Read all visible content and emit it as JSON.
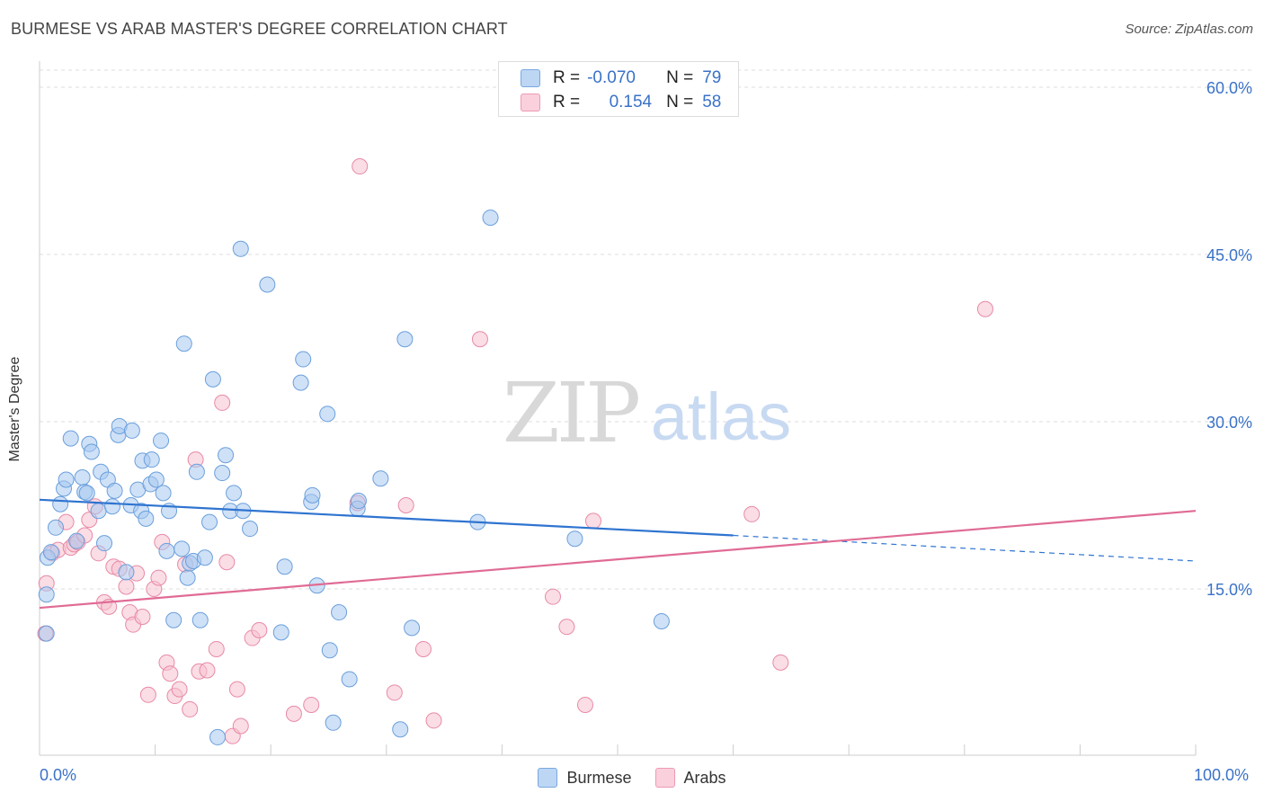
{
  "header": {
    "title": "BURMESE VS ARAB MASTER'S DEGREE CORRELATION CHART",
    "source": "Source: ZipAtlas.com"
  },
  "watermark": {
    "zip": "ZIP",
    "atlas": "atlas"
  },
  "legend": {
    "rows": [
      {
        "r_label": "R =",
        "r_value": "-0.070",
        "n_label": "N =",
        "n_value": "79",
        "color": "#a8c8f0"
      },
      {
        "r_label": "R =",
        "r_value": "0.154",
        "n_label": "N =",
        "n_value": "58",
        "color": "#f4b8c8"
      }
    ]
  },
  "bottom_legend": {
    "burmese": "Burmese",
    "arabs": "Arabs"
  },
  "colors": {
    "burmese_fill": "#a8c8f0",
    "burmese_stroke": "#6a9fdc",
    "burmese_line": "#2f74d0",
    "arabs_fill": "#f6c1cf",
    "arabs_stroke": "#e88aa6",
    "arabs_line": "#e06b95",
    "axis_label": "#3a72c8",
    "grid": "#dddddd"
  },
  "chart_data": {
    "type": "scatter",
    "title": "BURMESE VS ARAB MASTER'S DEGREE CORRELATION CHART",
    "xlabel": "",
    "ylabel": "Master's Degree",
    "xlim": [
      0,
      100
    ],
    "ylim": [
      0,
      62
    ],
    "x_tick_labels": [
      "0.0%",
      "100.0%"
    ],
    "y_ticks": [
      15,
      30,
      45,
      60
    ],
    "y_tick_labels": [
      "15.0%",
      "30.0%",
      "45.0%",
      "60.0%"
    ],
    "grid": true,
    "legend_position": "top-center",
    "series": [
      {
        "name": "Burmese",
        "R": -0.07,
        "N": 79,
        "trend": {
          "x0": 0,
          "y0": 23.0,
          "x1": 60,
          "y1": 19.8,
          "dashed_to": 100,
          "dashed_y": 17.5
        },
        "points": [
          [
            0.6,
            14.5
          ],
          [
            0.6,
            11.0
          ],
          [
            0.7,
            17.8
          ],
          [
            1.0,
            18.3
          ],
          [
            1.4,
            20.5
          ],
          [
            1.8,
            22.6
          ],
          [
            2.1,
            24.0
          ],
          [
            2.3,
            24.8
          ],
          [
            2.7,
            28.5
          ],
          [
            3.2,
            19.3
          ],
          [
            3.7,
            25.0
          ],
          [
            3.9,
            23.7
          ],
          [
            4.1,
            23.6
          ],
          [
            4.3,
            28.0
          ],
          [
            4.5,
            27.3
          ],
          [
            5.1,
            22.0
          ],
          [
            5.3,
            25.5
          ],
          [
            5.6,
            19.1
          ],
          [
            5.9,
            24.8
          ],
          [
            6.3,
            22.4
          ],
          [
            6.5,
            23.8
          ],
          [
            6.8,
            28.8
          ],
          [
            6.9,
            29.6
          ],
          [
            7.5,
            16.5
          ],
          [
            7.9,
            22.5
          ],
          [
            8.0,
            29.2
          ],
          [
            8.5,
            23.9
          ],
          [
            8.8,
            22.0
          ],
          [
            8.9,
            26.5
          ],
          [
            9.2,
            21.3
          ],
          [
            9.6,
            24.4
          ],
          [
            9.7,
            26.6
          ],
          [
            10.1,
            24.8
          ],
          [
            10.5,
            28.3
          ],
          [
            10.7,
            23.6
          ],
          [
            11.0,
            18.4
          ],
          [
            11.2,
            22.0
          ],
          [
            11.6,
            12.2
          ],
          [
            12.3,
            18.6
          ],
          [
            12.5,
            37.0
          ],
          [
            12.8,
            16.0
          ],
          [
            13.0,
            17.3
          ],
          [
            13.3,
            17.5
          ],
          [
            13.6,
            25.5
          ],
          [
            13.9,
            12.2
          ],
          [
            14.3,
            17.8
          ],
          [
            14.7,
            21.0
          ],
          [
            15.0,
            33.8
          ],
          [
            15.8,
            25.4
          ],
          [
            16.1,
            27.0
          ],
          [
            16.5,
            22.0
          ],
          [
            16.8,
            23.6
          ],
          [
            17.4,
            45.5
          ],
          [
            17.6,
            22.0
          ],
          [
            18.2,
            20.4
          ],
          [
            19.7,
            42.3
          ],
          [
            20.9,
            11.1
          ],
          [
            21.2,
            17.0
          ],
          [
            22.6,
            33.5
          ],
          [
            22.8,
            35.6
          ],
          [
            23.5,
            22.8
          ],
          [
            23.6,
            23.4
          ],
          [
            24.0,
            15.3
          ],
          [
            24.9,
            30.7
          ],
          [
            25.1,
            9.5
          ],
          [
            25.4,
            3.0
          ],
          [
            25.9,
            12.9
          ],
          [
            26.8,
            6.9
          ],
          [
            27.5,
            22.2
          ],
          [
            27.6,
            22.9
          ],
          [
            29.5,
            24.9
          ],
          [
            31.2,
            2.4
          ],
          [
            31.6,
            37.4
          ],
          [
            32.2,
            11.5
          ],
          [
            37.9,
            21.0
          ],
          [
            39.0,
            48.3
          ],
          [
            46.3,
            19.5
          ],
          [
            53.8,
            12.1
          ],
          [
            15.4,
            1.7
          ]
        ]
      },
      {
        "name": "Arabs",
        "R": 0.154,
        "N": 58,
        "trend": {
          "x0": 0,
          "y0": 13.3,
          "x1": 100,
          "y1": 22.0
        },
        "points": [
          [
            0.5,
            11.0
          ],
          [
            0.6,
            15.5
          ],
          [
            1.1,
            18.2
          ],
          [
            1.6,
            18.5
          ],
          [
            2.3,
            21.0
          ],
          [
            2.7,
            18.7
          ],
          [
            3.0,
            19.0
          ],
          [
            3.3,
            19.2
          ],
          [
            3.9,
            19.8
          ],
          [
            4.3,
            21.2
          ],
          [
            4.8,
            22.4
          ],
          [
            5.1,
            18.2
          ],
          [
            5.6,
            13.8
          ],
          [
            6.0,
            13.4
          ],
          [
            6.4,
            17.0
          ],
          [
            6.9,
            16.8
          ],
          [
            7.5,
            15.2
          ],
          [
            7.8,
            12.9
          ],
          [
            8.1,
            11.8
          ],
          [
            8.4,
            16.4
          ],
          [
            8.9,
            12.5
          ],
          [
            9.4,
            5.5
          ],
          [
            9.9,
            15.0
          ],
          [
            10.3,
            16.0
          ],
          [
            10.6,
            19.2
          ],
          [
            11.0,
            8.4
          ],
          [
            11.3,
            7.4
          ],
          [
            11.7,
            5.4
          ],
          [
            12.1,
            6.0
          ],
          [
            12.6,
            17.2
          ],
          [
            13.0,
            4.2
          ],
          [
            13.5,
            26.6
          ],
          [
            13.8,
            7.6
          ],
          [
            14.5,
            7.7
          ],
          [
            15.3,
            9.6
          ],
          [
            15.8,
            31.7
          ],
          [
            16.2,
            17.4
          ],
          [
            16.7,
            1.8
          ],
          [
            17.1,
            6.0
          ],
          [
            17.4,
            2.7
          ],
          [
            18.4,
            10.6
          ],
          [
            19.0,
            11.3
          ],
          [
            22.0,
            3.8
          ],
          [
            23.5,
            4.6
          ],
          [
            27.7,
            52.9
          ],
          [
            30.7,
            5.7
          ],
          [
            31.7,
            22.5
          ],
          [
            33.2,
            9.6
          ],
          [
            34.1,
            3.2
          ],
          [
            38.1,
            37.4
          ],
          [
            44.4,
            14.3
          ],
          [
            45.6,
            11.6
          ],
          [
            47.2,
            4.6
          ],
          [
            47.9,
            21.1
          ],
          [
            61.6,
            21.7
          ],
          [
            64.1,
            8.4
          ],
          [
            81.8,
            40.1
          ],
          [
            27.5,
            22.7
          ]
        ]
      }
    ]
  }
}
